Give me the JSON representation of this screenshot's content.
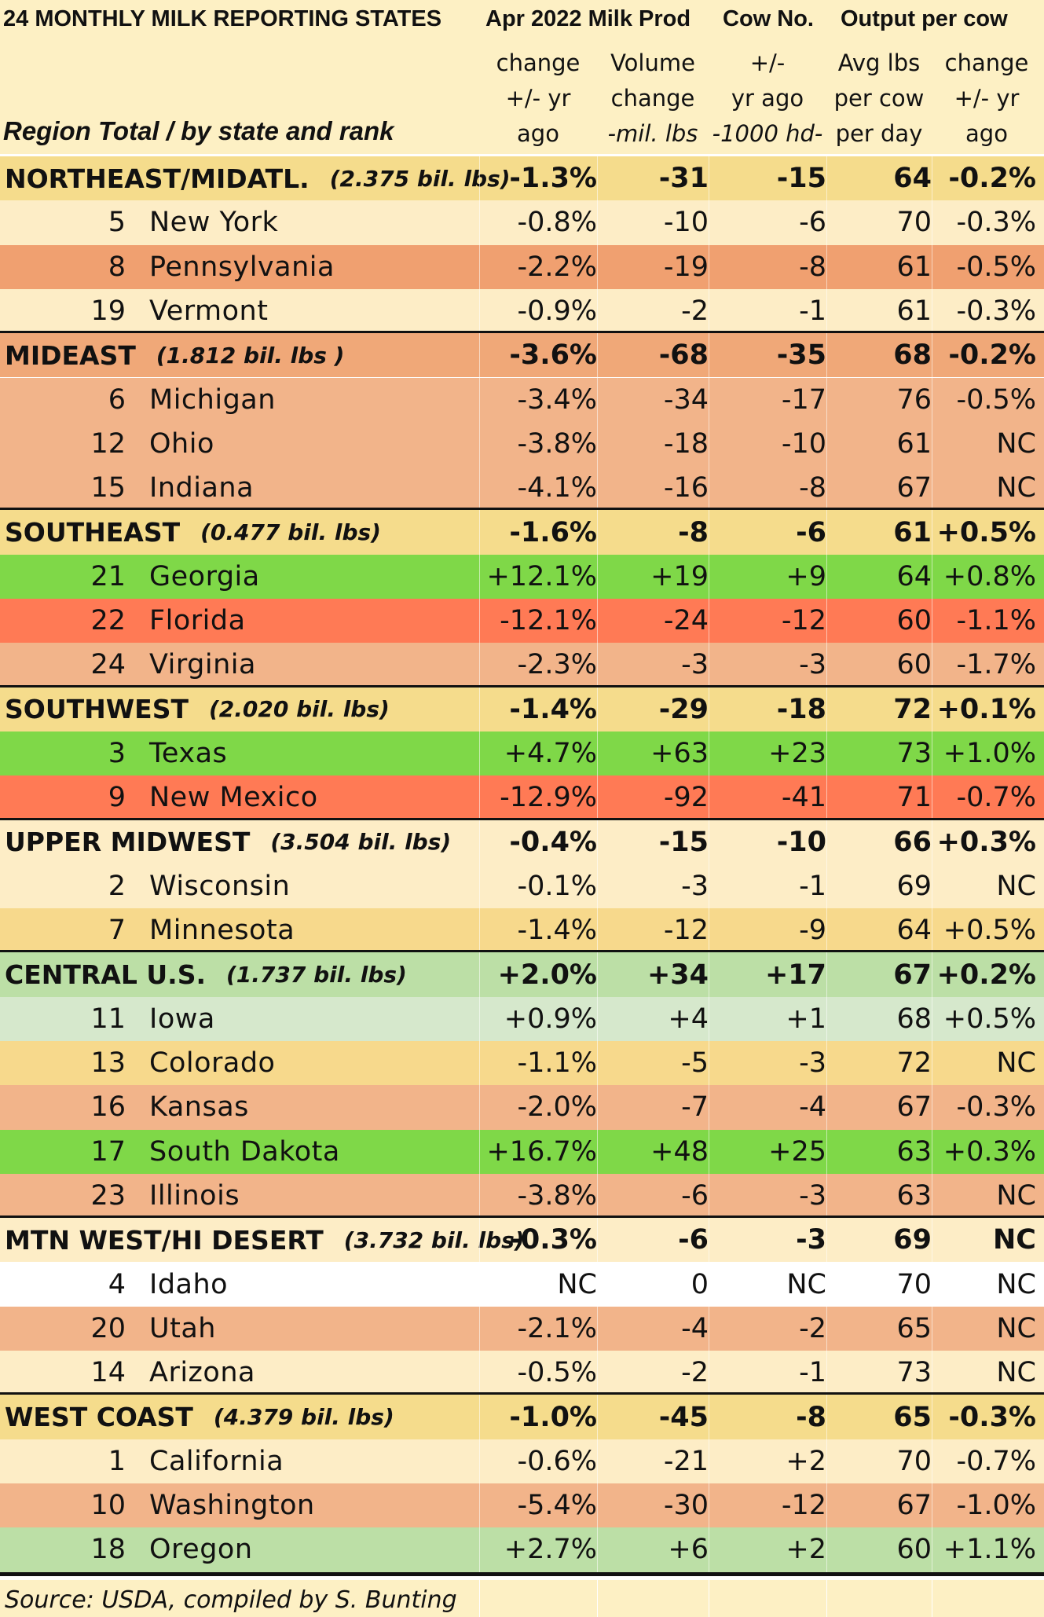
{
  "title": "24 MONTHLY MILK REPORTING STATES",
  "headers": {
    "group1": "Apr 2022 Milk Prod",
    "group2": "Cow No.",
    "group3": "Output per cow",
    "row_label": "Region Total / by state and rank",
    "col1": [
      "change",
      "+/- yr",
      "ago"
    ],
    "col2": [
      "Volume",
      "change",
      "-mil. lbs"
    ],
    "col3": [
      "+/-",
      "yr ago",
      "-1000 hd-"
    ],
    "col4": [
      "Avg lbs",
      "per cow",
      "per day"
    ],
    "col5": [
      "change",
      "+/- yr",
      "ago"
    ]
  },
  "source": "Source: USDA, compiled by S. Bunting",
  "colors": {
    "header": "#fdf0c4",
    "region_tan": "#f5dc8c",
    "region_orange": "#f0a878",
    "region_green": "#bcdfa6",
    "pale_yellow": "#fdedc6",
    "light_orange": "#f2b48a",
    "orange": "#f0a070",
    "red": "#ff7a55",
    "bright_green": "#7fd848",
    "light_green": "#d6e8cc",
    "tan": "#f7d98c",
    "white": "#ffffff"
  },
  "chart_data": {
    "type": "table",
    "title": "24 MONTHLY MILK REPORTING STATES",
    "columns": [
      "Region Total / by state and rank",
      "Apr 2022 Milk Prod change +/- yr ago",
      "Volume change -mil. lbs",
      "Cow No. +/- yr ago -1000 hd-",
      "Avg lbs per cow per day",
      "Output per cow change +/- yr ago"
    ],
    "regions": [
      {
        "name": "NORTHEAST/MIDATL.",
        "volume": "(2.375 bil. lbs)",
        "values": [
          "-1.3%",
          "-31",
          "-15",
          "64",
          "-0.2%"
        ],
        "color": "#f5dc8c",
        "states": [
          {
            "rank": "5",
            "name": "New York",
            "values": [
              "-0.8%",
              "-10",
              "-6",
              "70",
              "-0.3%"
            ],
            "color": "#fdedc6"
          },
          {
            "rank": "8",
            "name": "Pennsylvania",
            "values": [
              "-2.2%",
              "-19",
              "-8",
              "61",
              "-0.5%"
            ],
            "color": "#f0a070"
          },
          {
            "rank": "19",
            "name": "Vermont",
            "values": [
              "-0.9%",
              "-2",
              "-1",
              "61",
              "-0.3%"
            ],
            "color": "#fdedc6"
          }
        ]
      },
      {
        "name": "MIDEAST",
        "volume": "(1.812 bil. lbs )",
        "values": [
          "-3.6%",
          "-68",
          "-35",
          "68",
          "-0.2%"
        ],
        "color": "#f0a878",
        "states": [
          {
            "rank": "6",
            "name": "Michigan",
            "values": [
              "-3.4%",
              "-34",
              "-17",
              "76",
              "-0.5%"
            ],
            "color": "#f2b48a"
          },
          {
            "rank": "12",
            "name": "Ohio",
            "values": [
              "-3.8%",
              "-18",
              "-10",
              "61",
              "NC"
            ],
            "color": "#f2b48a"
          },
          {
            "rank": "15",
            "name": "Indiana",
            "values": [
              "-4.1%",
              "-16",
              "-8",
              "67",
              "NC"
            ],
            "color": "#f2b48a"
          }
        ]
      },
      {
        "name": "SOUTHEAST",
        "volume": "(0.477 bil. lbs)",
        "values": [
          "-1.6%",
          "-8",
          "-6",
          "61",
          "+0.5%"
        ],
        "color": "#f5dc8c",
        "states": [
          {
            "rank": "21",
            "name": "Georgia",
            "values": [
              "+12.1%",
              "+19",
              "+9",
              "64",
              "+0.8%"
            ],
            "color": "#7fd848"
          },
          {
            "rank": "22",
            "name": "Florida",
            "values": [
              "-12.1%",
              "-24",
              "-12",
              "60",
              "-1.1%"
            ],
            "color": "#ff7a55"
          },
          {
            "rank": "24",
            "name": "Virginia",
            "values": [
              "-2.3%",
              "-3",
              "-3",
              "60",
              "-1.7%"
            ],
            "color": "#f2b48a"
          }
        ]
      },
      {
        "name": "SOUTHWEST",
        "volume": "(2.020 bil. lbs)",
        "values": [
          "-1.4%",
          "-29",
          "-18",
          "72",
          "+0.1%"
        ],
        "color": "#f5dc8c",
        "states": [
          {
            "rank": "3",
            "name": "Texas",
            "values": [
              "+4.7%",
              "+63",
              "+23",
              "73",
              "+1.0%"
            ],
            "color": "#7fd848"
          },
          {
            "rank": "9",
            "name": "New Mexico",
            "values": [
              "-12.9%",
              "-92",
              "-41",
              "71",
              "-0.7%"
            ],
            "color": "#ff7a55"
          }
        ]
      },
      {
        "name": "UPPER MIDWEST",
        "volume": "(3.504 bil. lbs)",
        "values": [
          "-0.4%",
          "-15",
          "-10",
          "66",
          "+0.3%"
        ],
        "color": "#fdedc6",
        "states": [
          {
            "rank": "2",
            "name": "Wisconsin",
            "values": [
              "-0.1%",
              "-3",
              "-1",
              "69",
              "NC"
            ],
            "color": "#fdedc6"
          },
          {
            "rank": "7",
            "name": "Minnesota",
            "values": [
              "-1.4%",
              "-12",
              "-9",
              "64",
              "+0.5%"
            ],
            "color": "#f7d98c"
          }
        ]
      },
      {
        "name": "CENTRAL U.S.",
        "volume": "(1.737 bil. lbs)",
        "values": [
          "+2.0%",
          "+34",
          "+17",
          "67",
          "+0.2%"
        ],
        "color": "#bcdfa6",
        "states": [
          {
            "rank": "11",
            "name": "Iowa",
            "values": [
              "+0.9%",
              "+4",
              "+1",
              "68",
              "+0.5%"
            ],
            "color": "#d6e8cc"
          },
          {
            "rank": "13",
            "name": "Colorado",
            "values": [
              "-1.1%",
              "-5",
              "-3",
              "72",
              "NC"
            ],
            "color": "#f7d98c"
          },
          {
            "rank": "16",
            "name": "Kansas",
            "values": [
              "-2.0%",
              "-7",
              "-4",
              "67",
              "-0.3%"
            ],
            "color": "#f2b48a"
          },
          {
            "rank": "17",
            "name": "South Dakota",
            "values": [
              "+16.7%",
              "+48",
              "+25",
              "63",
              "+0.3%"
            ],
            "color": "#7fd848"
          },
          {
            "rank": "23",
            "name": "Illinois",
            "values": [
              "-3.8%",
              "-6",
              "-3",
              "63",
              "NC"
            ],
            "color": "#f2b48a"
          }
        ]
      },
      {
        "name": "MTN WEST/HI DESERT",
        "volume": "(3.732 bil. lbs)",
        "values": [
          "-0.3%",
          "-6",
          "-3",
          "69",
          "NC"
        ],
        "color": "#fdedc6",
        "states": [
          {
            "rank": "4",
            "name": "Idaho",
            "values": [
              "NC",
              "0",
              "NC",
              "70",
              "NC"
            ],
            "color": "#ffffff"
          },
          {
            "rank": "20",
            "name": "Utah",
            "values": [
              "-2.1%",
              "-4",
              "-2",
              "65",
              "NC"
            ],
            "color": "#f2b48a"
          },
          {
            "rank": "14",
            "name": "Arizona",
            "values": [
              "-0.5%",
              "-2",
              "-1",
              "73",
              "NC"
            ],
            "color": "#fdedc6"
          }
        ]
      },
      {
        "name": "WEST COAST",
        "volume": "(4.379 bil. lbs)",
        "values": [
          "-1.0%",
          "-45",
          "-8",
          "65",
          "-0.3%"
        ],
        "color": "#f5dc8c",
        "states": [
          {
            "rank": "1",
            "name": "California",
            "values": [
              "-0.6%",
              "-21",
              "+2",
              "70",
              "-0.7%"
            ],
            "color": "#fdedc6"
          },
          {
            "rank": "10",
            "name": "Washington",
            "values": [
              "-5.4%",
              "-30",
              "-12",
              "67",
              "-1.0%"
            ],
            "color": "#f2b48a"
          },
          {
            "rank": "18",
            "name": "Oregon",
            "values": [
              "+2.7%",
              "+6",
              "+2",
              "60",
              "+1.1%"
            ],
            "color": "#bcdfa6"
          }
        ]
      }
    ]
  }
}
